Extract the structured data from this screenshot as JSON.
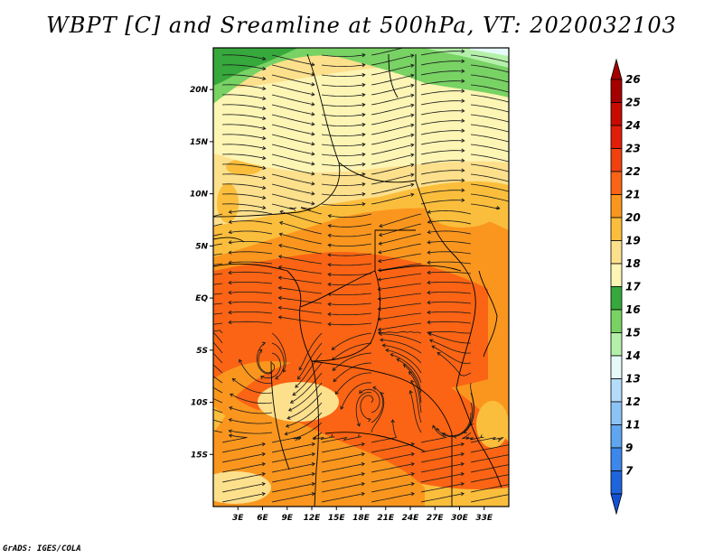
{
  "title": "WBPT [C] and Sreamline at 500hPa, VT: 2020032103",
  "credit": "GrADS: IGES/COLA",
  "map": {
    "variable": "Wet-bulb potential temperature",
    "units": "C",
    "level": "500hPa",
    "lon_range": [
      0,
      36
    ],
    "lat_range": [
      -20,
      24
    ],
    "lat_ticks": [
      {
        "value": 20,
        "label": "20N"
      },
      {
        "value": 15,
        "label": "15N"
      },
      {
        "value": 10,
        "label": "10N"
      },
      {
        "value": 5,
        "label": "5N"
      },
      {
        "value": 0,
        "label": "EQ"
      },
      {
        "value": -5,
        "label": "5S"
      },
      {
        "value": -10,
        "label": "10S"
      },
      {
        "value": -15,
        "label": "15S"
      }
    ],
    "lon_ticks": [
      {
        "value": 3,
        "label": "3E"
      },
      {
        "value": 6,
        "label": "6E"
      },
      {
        "value": 9,
        "label": "9E"
      },
      {
        "value": 12,
        "label": "12E"
      },
      {
        "value": 15,
        "label": "15E"
      },
      {
        "value": 18,
        "label": "18E"
      },
      {
        "value": 21,
        "label": "21E"
      },
      {
        "value": 24,
        "label": "24E"
      },
      {
        "value": 27,
        "label": "27E"
      },
      {
        "value": 30,
        "label": "30E"
      },
      {
        "value": 33,
        "label": "33E"
      }
    ]
  },
  "colorbar": {
    "levels": [
      {
        "label": "26",
        "color": "#a50000"
      },
      {
        "label": "25",
        "color": "#c80a00"
      },
      {
        "label": "24",
        "color": "#e11e0a"
      },
      {
        "label": "23",
        "color": "#f0410f"
      },
      {
        "label": "22",
        "color": "#fa6414"
      },
      {
        "label": "21",
        "color": "#fa961e"
      },
      {
        "label": "20",
        "color": "#fbbe3c"
      },
      {
        "label": "19",
        "color": "#fde08c"
      },
      {
        "label": "18",
        "color": "#fdf5b4"
      },
      {
        "label": "17",
        "color": "#37a83c"
      },
      {
        "label": "16",
        "color": "#78d264"
      },
      {
        "label": "15",
        "color": "#b4f0aa"
      },
      {
        "label": "14",
        "color": "#e6fafa"
      },
      {
        "label": "13",
        "color": "#b4dcfa"
      },
      {
        "label": "12",
        "color": "#8cc3f5"
      },
      {
        "label": "11",
        "color": "#5fa5f0"
      },
      {
        "label": "9",
        "color": "#3c87eb"
      },
      {
        "label": "7",
        "color": "#1e64dc"
      }
    ],
    "lowest_color": "#1450d2"
  }
}
